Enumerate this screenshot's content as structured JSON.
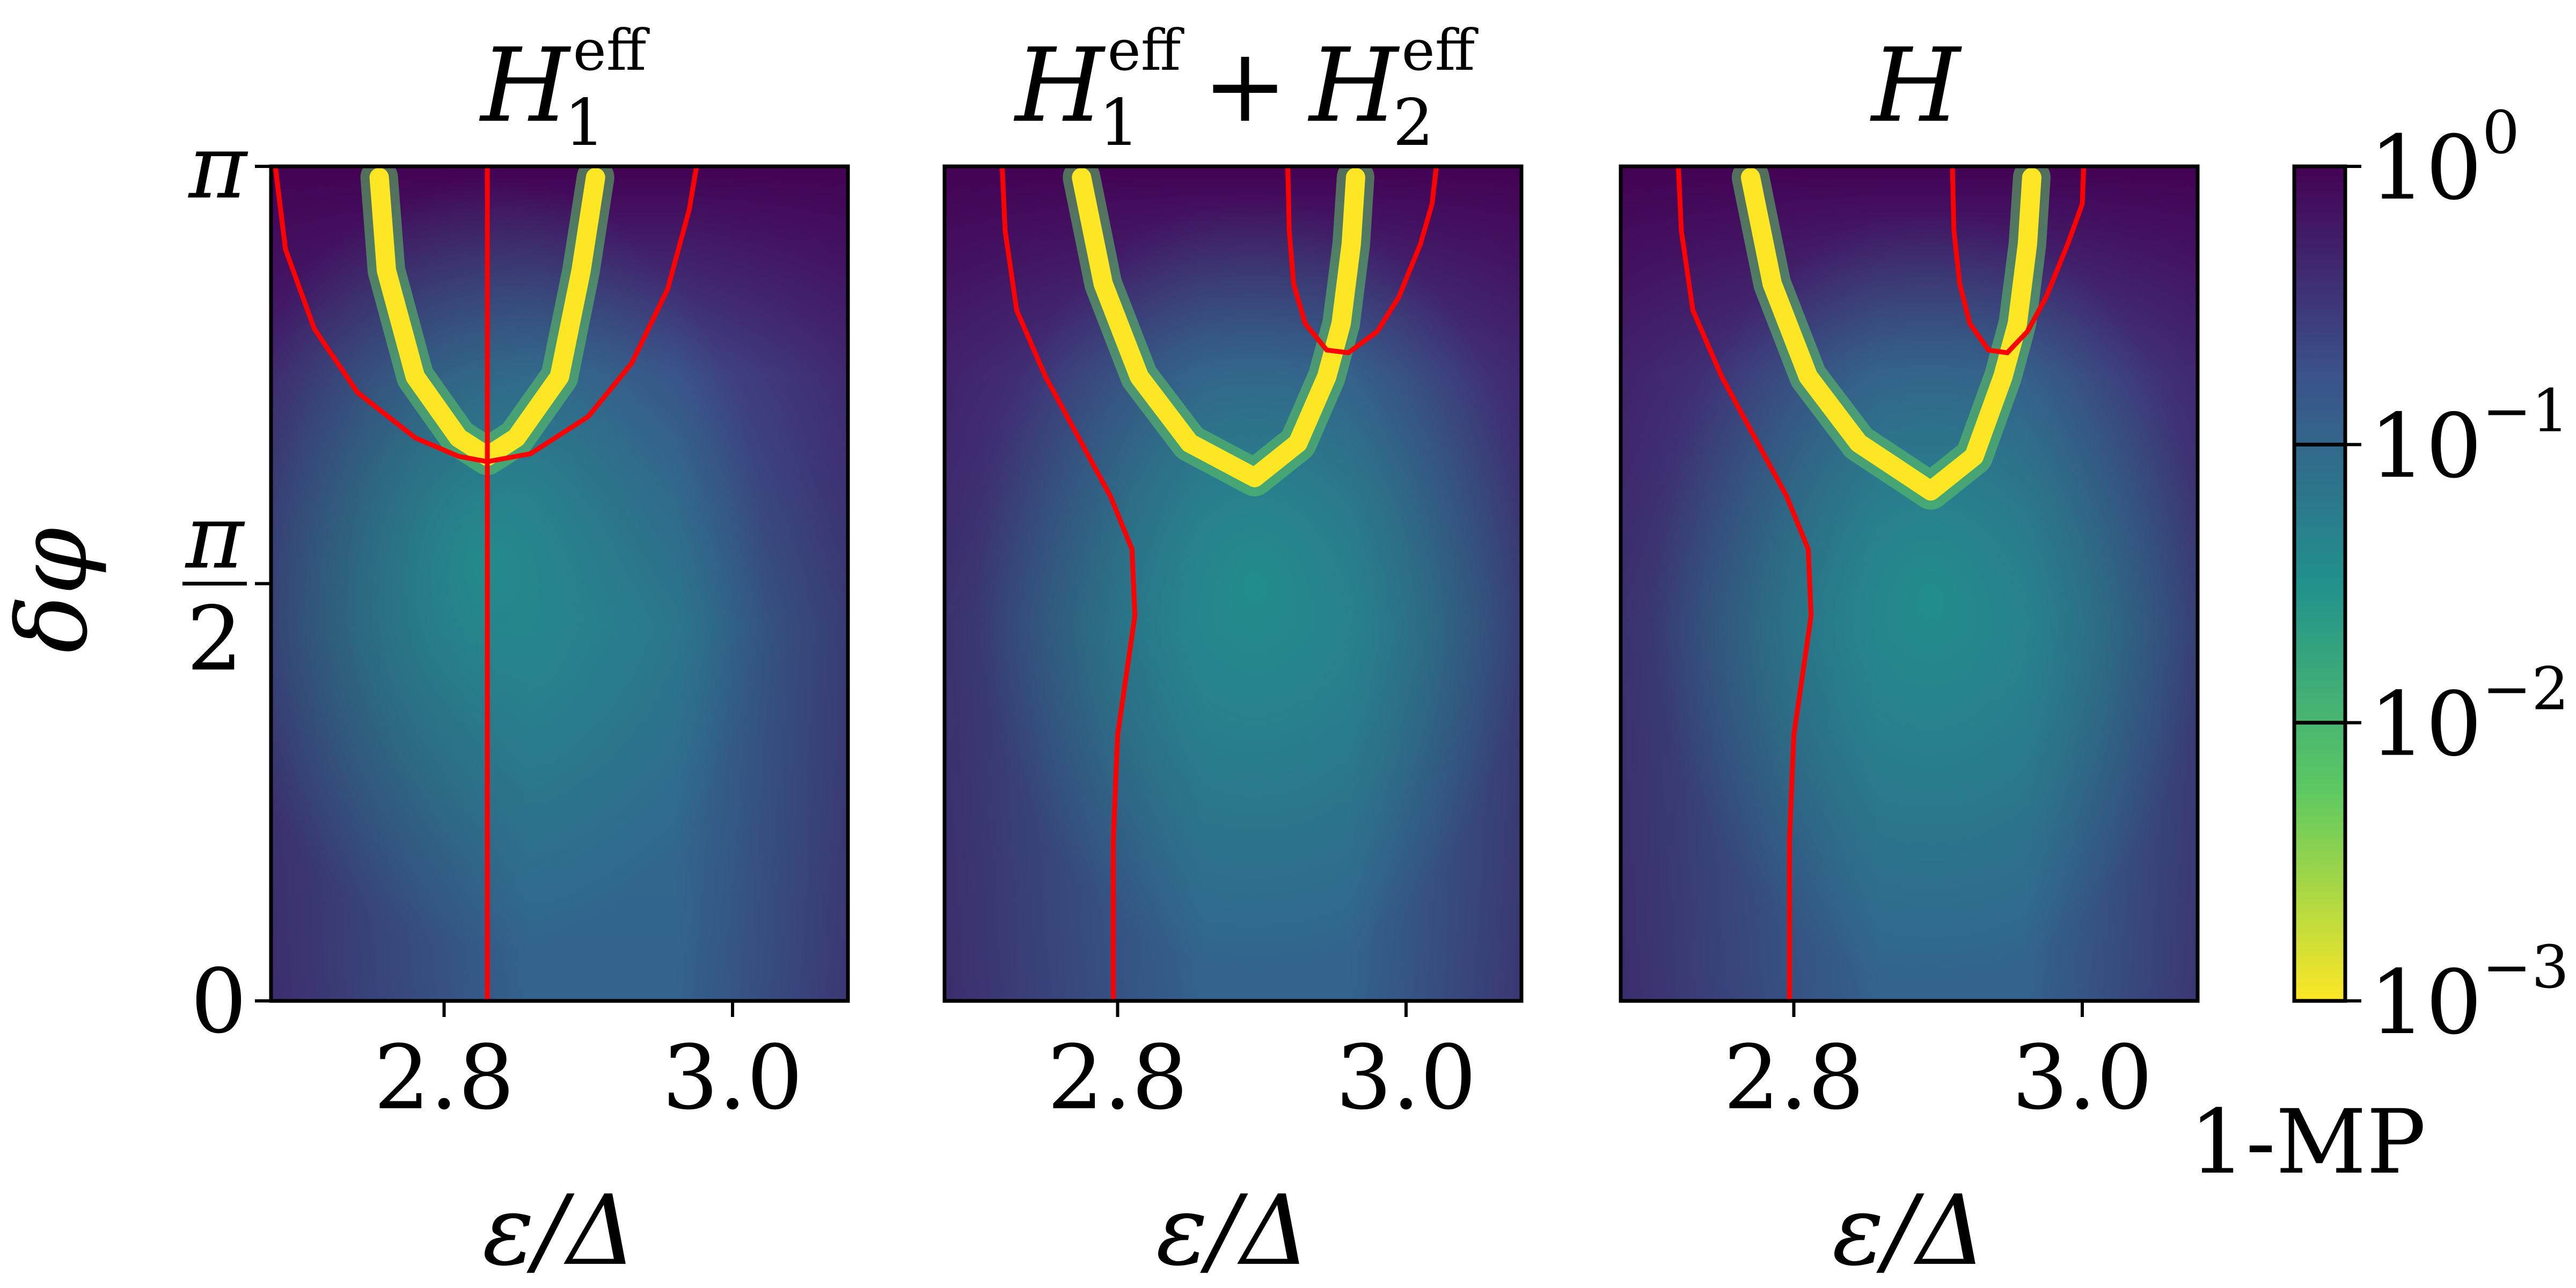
{
  "chart_data": [
    {
      "type": "heatmap",
      "title_base": "H",
      "title_sub": "1",
      "title_sup": "eff",
      "xlabel": "ε/Δ",
      "ylabel": "δφ",
      "xlim": [
        2.68,
        3.08
      ],
      "ylim": [
        0,
        3.14159
      ],
      "xticks": [
        {
          "value": 2.8,
          "label": "2.8"
        },
        {
          "value": 3.0,
          "label": "3.0"
        }
      ],
      "yticks": [
        {
          "value": 0,
          "label": "0"
        },
        {
          "value": 1.5708,
          "label": "π/2"
        },
        {
          "value": 3.14159,
          "label": "π"
        }
      ],
      "colormap": "viridis_r",
      "color_scale": "log",
      "red_curves": [
        {
          "name": "",
          "x": [
            2.83,
            2.83
          ],
          "y": [
            0,
            3.14159
          ]
        },
        {
          "name": "",
          "x": [
            2.683,
            2.69,
            2.71,
            2.74,
            2.78,
            2.81,
            2.83,
            2.86,
            2.9,
            2.93,
            2.955,
            2.97,
            2.975
          ],
          "y": [
            3.14,
            2.83,
            2.53,
            2.29,
            2.12,
            2.05,
            2.03,
            2.06,
            2.2,
            2.4,
            2.68,
            2.98,
            3.14
          ]
        }
      ],
      "valley": {
        "x": [
          2.755,
          2.76,
          2.78,
          2.81,
          2.83,
          2.85,
          2.88,
          2.895,
          2.905
        ],
        "y": [
          3.1,
          2.75,
          2.35,
          2.12,
          2.05,
          2.12,
          2.35,
          2.75,
          3.1
        ]
      }
    },
    {
      "type": "heatmap",
      "title_base": "H",
      "title_sub": "1",
      "title_sup": "eff",
      "title_plus": "+",
      "title_base2": "H",
      "title_sub2": "2",
      "title_sup2": "eff",
      "xlabel": "ε/Δ",
      "xlim": [
        2.68,
        3.08
      ],
      "ylim": [
        0,
        3.14159
      ],
      "xticks": [
        {
          "value": 2.8,
          "label": "2.8"
        },
        {
          "value": 3.0,
          "label": "3.0"
        }
      ],
      "colormap": "viridis_r",
      "color_scale": "log",
      "red_curves": [
        {
          "name": "",
          "x": [
            2.72,
            2.722,
            2.73,
            2.75,
            2.775,
            2.795,
            2.81,
            2.812,
            2.8,
            2.797,
            2.797,
            2.797
          ],
          "y": [
            3.14,
            2.9,
            2.6,
            2.35,
            2.1,
            1.9,
            1.7,
            1.45,
            1.0,
            0.6,
            0.3,
            0.0
          ]
        },
        {
          "name": "",
          "x": [
            2.918,
            2.919,
            2.922,
            2.93,
            2.945,
            2.96,
            2.98,
            2.995,
            3.01,
            3.018,
            3.021
          ],
          "y": [
            3.14,
            2.9,
            2.7,
            2.55,
            2.45,
            2.44,
            2.52,
            2.65,
            2.85,
            3.0,
            3.14
          ]
        }
      ],
      "valley": {
        "x": [
          2.775,
          2.79,
          2.815,
          2.85,
          2.895,
          2.925,
          2.945,
          2.955,
          2.962,
          2.965
        ],
        "y": [
          3.1,
          2.7,
          2.35,
          2.1,
          1.97,
          2.1,
          2.35,
          2.55,
          2.85,
          3.1
        ]
      }
    },
    {
      "type": "heatmap",
      "title_base": "H",
      "xlabel": "ε/Δ",
      "xlim": [
        2.68,
        3.08
      ],
      "ylim": [
        0,
        3.14159
      ],
      "xticks": [
        {
          "value": 2.8,
          "label": "2.8"
        },
        {
          "value": 3.0,
          "label": "3.0"
        }
      ],
      "colormap": "viridis_r",
      "color_scale": "log",
      "red_curves": [
        {
          "name": "",
          "x": [
            2.72,
            2.722,
            2.73,
            2.75,
            2.775,
            2.795,
            2.81,
            2.812,
            2.8,
            2.797,
            2.797,
            2.797
          ],
          "y": [
            3.14,
            2.9,
            2.6,
            2.35,
            2.1,
            1.9,
            1.7,
            1.45,
            1.0,
            0.6,
            0.3,
            0.0
          ]
        },
        {
          "name": "",
          "x": [
            2.91,
            2.911,
            2.915,
            2.922,
            2.935,
            2.948,
            2.962,
            2.975,
            2.99,
            3.0,
            3.001
          ],
          "y": [
            3.14,
            2.9,
            2.7,
            2.55,
            2.45,
            2.44,
            2.52,
            2.65,
            2.85,
            3.0,
            3.14
          ]
        }
      ],
      "valley": {
        "x": [
          2.77,
          2.785,
          2.81,
          2.845,
          2.895,
          2.925,
          2.945,
          2.955,
          2.962,
          2.965
        ],
        "y": [
          3.1,
          2.7,
          2.35,
          2.1,
          1.92,
          2.05,
          2.35,
          2.55,
          2.85,
          3.1
        ]
      }
    }
  ],
  "colorbar": {
    "label": "1-MP",
    "scale": "log",
    "range": [
      0.001,
      1
    ],
    "ticks": [
      {
        "base": "10",
        "exp": "0"
      },
      {
        "base": "10",
        "exp": "−1"
      },
      {
        "base": "10",
        "exp": "−2"
      },
      {
        "base": "10",
        "exp": "−3"
      }
    ],
    "colors": [
      "#fde725",
      "#5ec962",
      "#21918c",
      "#3b528b",
      "#440154"
    ]
  },
  "curve_color": "#ff0000"
}
